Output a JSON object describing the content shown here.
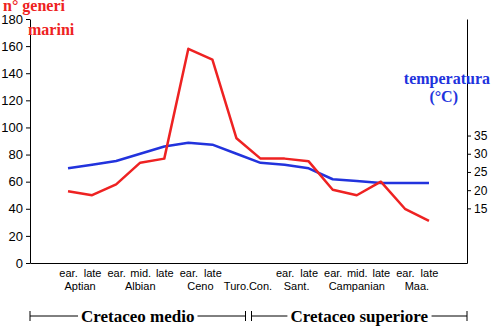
{
  "chart_data": {
    "type": "line",
    "y_label": "n° generi\nmarini",
    "y2_label": "temperatura\n(°C)",
    "categories": [
      "ear.",
      "late",
      "ear.",
      "mid.",
      "late",
      "ear.",
      "late",
      null,
      null,
      "ear.",
      "late",
      "ear.",
      "mid.",
      "late",
      "ear.",
      "late"
    ],
    "category_groups": [
      {
        "label": "Aptian",
        "categories": [
          0,
          1
        ]
      },
      {
        "label": "Albian",
        "categories": [
          2,
          3,
          4
        ]
      },
      {
        "label": "Ceno",
        "categories": [
          5,
          6
        ]
      },
      {
        "label": "Turo.",
        "categories": [
          7
        ]
      },
      {
        "label": "Con.",
        "categories": [
          8
        ]
      },
      {
        "label": "Sant.",
        "categories": [
          9,
          10
        ]
      },
      {
        "label": "Campanian",
        "categories": [
          11,
          12,
          13
        ]
      },
      {
        "label": "Maa.",
        "categories": [
          14,
          15
        ]
      }
    ],
    "periods": [
      {
        "label": "Cretaceo medio",
        "from": 0,
        "to": 7
      },
      {
        "label": "Cretaceo superiore",
        "from": 8,
        "to": 15
      }
    ],
    "series": [
      {
        "name": "n° generi marini",
        "color": "#ee2222",
        "values": [
          53,
          50,
          58,
          74,
          77,
          158,
          150,
          92,
          77,
          77,
          75,
          54,
          50,
          60,
          40,
          31
        ]
      },
      {
        "name": "temperatura",
        "color": "#2233dd",
        "axis": "y2",
        "values": [
          26,
          27,
          28,
          30,
          32,
          33,
          32.5,
          30,
          27.5,
          27,
          26,
          23,
          22.5,
          22,
          22,
          22
        ]
      }
    ],
    "ylim": [
      0,
      180
    ],
    "yticks": [
      0,
      20,
      40,
      60,
      80,
      100,
      120,
      140,
      160,
      180
    ],
    "y2lim": [
      0,
      67
    ],
    "y2ticks": [
      15,
      20,
      25,
      30,
      35
    ],
    "grid": false
  }
}
